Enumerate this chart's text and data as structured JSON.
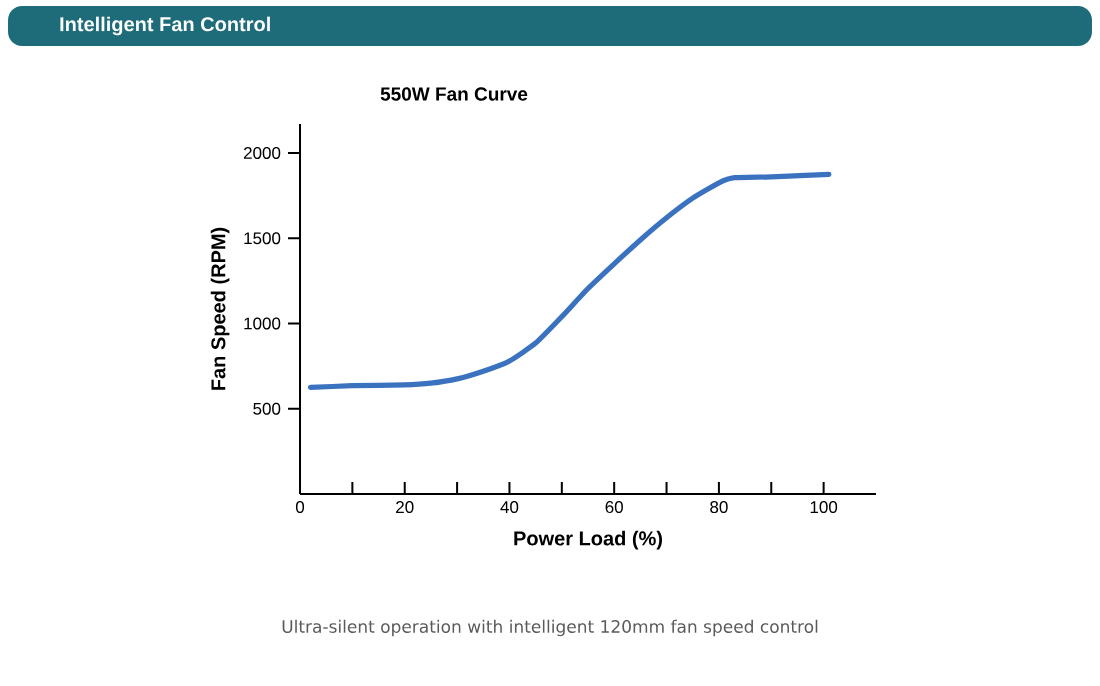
{
  "chart_data": {
    "type": "line",
    "title": "550W Fan Curve",
    "xlabel": "Power Load (%)",
    "ylabel": "Fan Speed (RPM)",
    "annotations": [
      "Intelligent Fan Control",
      "Ultra-silent operation with intelligent 120mm fan speed control"
    ],
    "xlim": [
      0,
      110
    ],
    "ylim": [
      0,
      2170
    ],
    "xticks": [
      0,
      {
        "value": 10,
        "label": null
      },
      20,
      {
        "value": 30,
        "label": null
      },
      40,
      {
        "value": 50,
        "label": null
      },
      60,
      {
        "value": 70,
        "label": null
      },
      80,
      {
        "value": 90,
        "label": null
      },
      100
    ],
    "yticks": [
      500,
      1000,
      1500,
      2000
    ],
    "series": [
      {
        "color": "#3a72c0",
        "x": [
          2,
          10,
          20,
          25,
          30,
          35,
          40,
          45,
          50,
          55,
          60,
          65,
          70,
          75,
          80,
          83,
          90,
          101
        ],
        "values": [
          625,
          635,
          640,
          650,
          675,
          720,
          780,
          885,
          1040,
          1205,
          1350,
          1490,
          1620,
          1735,
          1825,
          1855,
          1860,
          1875
        ]
      }
    ]
  }
}
